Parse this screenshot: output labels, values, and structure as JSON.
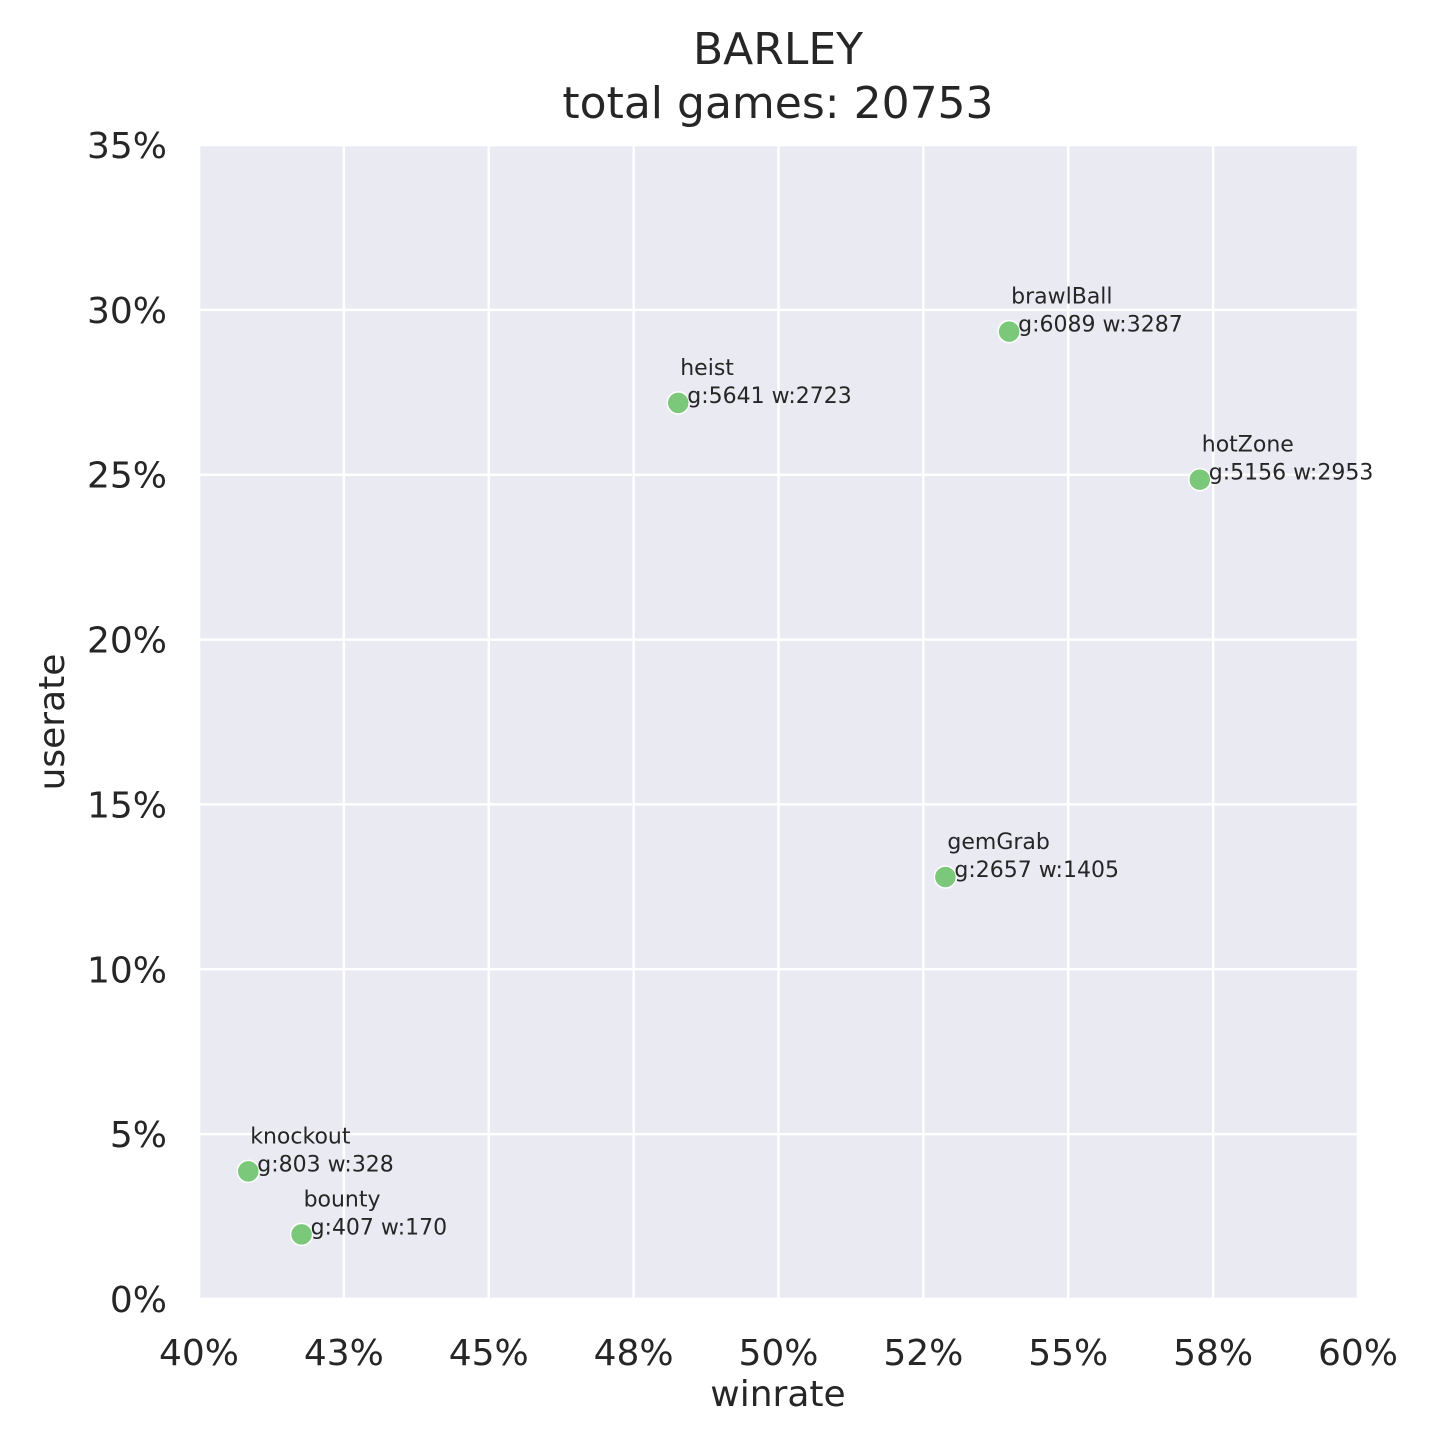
{
  "chart_data": {
    "type": "scatter",
    "title": "BARLEY",
    "subtitle": "total games: 20753",
    "xlabel": "winrate",
    "ylabel": "userate",
    "xlim": [
      0.4,
      0.6
    ],
    "ylim": [
      0,
      0.35
    ],
    "xticks": [
      0.4,
      0.425,
      0.45,
      0.475,
      0.5,
      0.525,
      0.55,
      0.575,
      0.6
    ],
    "xtick_labels": [
      "40%",
      "43%",
      "45%",
      "48%",
      "50%",
      "52%",
      "55%",
      "58%",
      "60%"
    ],
    "yticks": [
      0,
      0.05,
      0.1,
      0.15,
      0.2,
      0.25,
      0.3,
      0.35
    ],
    "ytick_labels": [
      "0%",
      "5%",
      "10%",
      "15%",
      "20%",
      "25%",
      "30%",
      "35%"
    ],
    "grid": true,
    "colors": {
      "plot_background": "#eaeaf2",
      "grid": "#ffffff",
      "point": "#7bc87b",
      "text": "#262626"
    },
    "points": [
      {
        "name": "brawlBall",
        "detail": "g:6089 w:3287",
        "x": 0.5398,
        "y": 0.2934
      },
      {
        "name": "heist",
        "detail": "g:5641 w:2723",
        "x": 0.4827,
        "y": 0.2718
      },
      {
        "name": "hotZone",
        "detail": "g:5156 w:2953",
        "x": 0.5727,
        "y": 0.2485
      },
      {
        "name": "gemGrab",
        "detail": "g:2657 w:1405",
        "x": 0.5288,
        "y": 0.128
      },
      {
        "name": "knockout",
        "detail": "g:803 w:328",
        "x": 0.4085,
        "y": 0.0387
      },
      {
        "name": "bounty",
        "detail": "g:407 w:170",
        "x": 0.4177,
        "y": 0.0196
      }
    ]
  }
}
